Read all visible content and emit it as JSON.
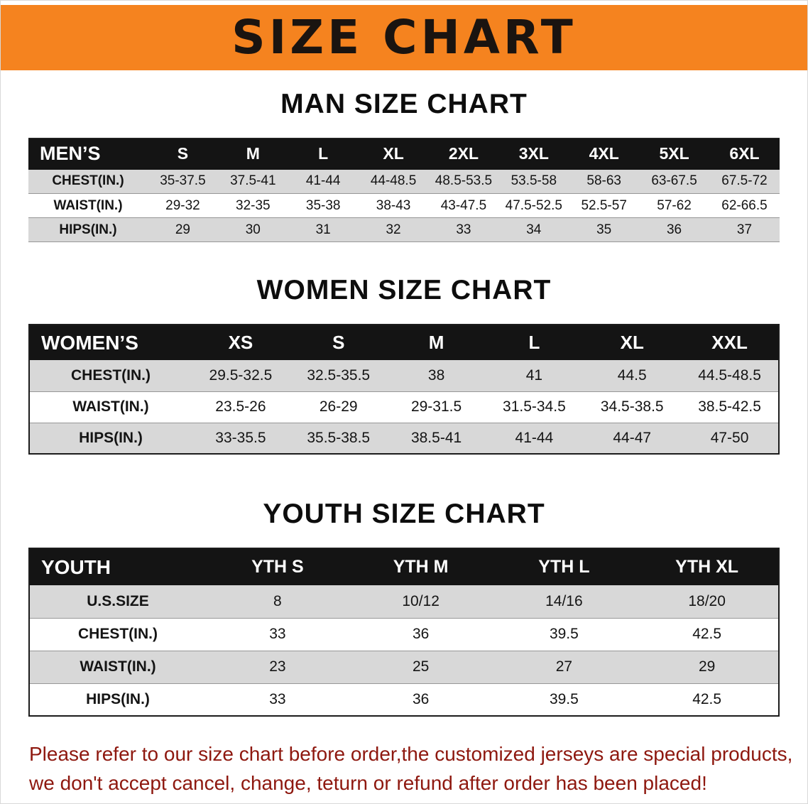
{
  "theme": {
    "banner_orange": "#f5831f",
    "header_black": "#141414",
    "row_gray": "#d8d8d8",
    "footer_red": "#8e180f"
  },
  "banner": {
    "title": "SIZE CHART"
  },
  "sections": [
    {
      "title": "MAN SIZE CHART",
      "table": {
        "corner_label": "MEN’S",
        "columns": [
          "S",
          "M",
          "L",
          "XL",
          "2XL",
          "3XL",
          "4XL",
          "5XL",
          "6XL"
        ],
        "rows": [
          {
            "label": "CHEST(IN.)",
            "values": [
              "35-37.5",
              "37.5-41",
              "41-44",
              "44-48.5",
              "48.5-53.5",
              "53.5-58",
              "58-63",
              "63-67.5",
              "67.5-72"
            ]
          },
          {
            "label": "WAIST(IN.)",
            "values": [
              "29-32",
              "32-35",
              "35-38",
              "38-43",
              "43-47.5",
              "47.5-52.5",
              "52.5-57",
              "57-62",
              "62-66.5"
            ]
          },
          {
            "label": "HIPS(IN.)",
            "values": [
              "29",
              "30",
              "31",
              "32",
              "33",
              "34",
              "35",
              "36",
              "37"
            ]
          }
        ]
      }
    },
    {
      "title": "WOMEN SIZE CHART",
      "table": {
        "corner_label": "WOMEN’S",
        "columns": [
          "XS",
          "S",
          "M",
          "L",
          "XL",
          "XXL"
        ],
        "rows": [
          {
            "label": "CHEST(IN.)",
            "values": [
              "29.5-32.5",
              "32.5-35.5",
              "38",
              "41",
              "44.5",
              "44.5-48.5"
            ]
          },
          {
            "label": "WAIST(IN.)",
            "values": [
              "23.5-26",
              "26-29",
              "29-31.5",
              "31.5-34.5",
              "34.5-38.5",
              "38.5-42.5"
            ]
          },
          {
            "label": "HIPS(IN.)",
            "values": [
              "33-35.5",
              "35.5-38.5",
              "38.5-41",
              "41-44",
              "44-47",
              "47-50"
            ]
          }
        ]
      }
    },
    {
      "title": "YOUTH SIZE CHART",
      "table": {
        "corner_label": "YOUTH",
        "columns": [
          "YTH S",
          "YTH M",
          "YTH L",
          "YTH XL"
        ],
        "rows": [
          {
            "label": "U.S.SIZE",
            "values": [
              "8",
              "10/12",
              "14/16",
              "18/20"
            ]
          },
          {
            "label": "CHEST(IN.)",
            "values": [
              "33",
              "36",
              "39.5",
              "42.5"
            ]
          },
          {
            "label": "WAIST(IN.)",
            "values": [
              "23",
              "25",
              "27",
              "29"
            ]
          },
          {
            "label": "HIPS(IN.)",
            "values": [
              "33",
              "36",
              "39.5",
              "42.5"
            ]
          }
        ]
      }
    }
  ],
  "footer": {
    "line1": "Please refer to our size chart before order,the customized jerseys are special products,",
    "line2": "we don't accept cancel, change, teturn or refund after order has been placed!"
  }
}
